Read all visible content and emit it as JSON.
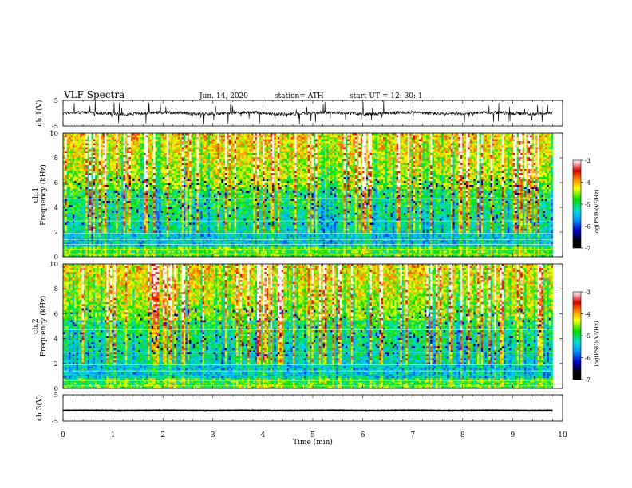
{
  "header": {
    "title": "VLF  Spectra",
    "date": "Jun. 14, 2020",
    "station": "station= ATH",
    "start_ut": "start  UT  =    12: 30: 1"
  },
  "chart_data": [
    {
      "type": "line",
      "id": "ch1-waveform",
      "ylabel": "ch.1(V)",
      "yticks": [
        "5",
        "-5"
      ],
      "ylim": [
        -5,
        5
      ],
      "xlim": [
        0,
        10
      ],
      "data_extent_min": 9.8,
      "baseline": 0,
      "noise_amplitude": 1.2,
      "color": "#000000"
    },
    {
      "type": "heatmap",
      "id": "ch1-spectrogram",
      "ylabel": "ch.1\nFrequency  (kHz)",
      "ylabel_lines": [
        "ch.1",
        "Frequency  (kHz)"
      ],
      "yticks": [
        "10",
        "8",
        "6",
        "4",
        "2",
        "0"
      ],
      "ylim": [
        0,
        10
      ],
      "xlim": [
        0,
        10
      ],
      "data_extent_min": 9.8,
      "colorbar": {
        "label": "log(PSD)(V²/Hz)",
        "ticks": [
          "-3",
          "-4",
          "-5",
          "-6",
          "-7"
        ],
        "range": [
          -7,
          -3
        ]
      }
    },
    {
      "type": "heatmap",
      "id": "ch2-spectrogram",
      "ylabel": "ch.2\nFrequency  (kHz)",
      "ylabel_lines": [
        "ch.2",
        "Frequency  (kHz)"
      ],
      "yticks": [
        "10",
        "8",
        "6",
        "4",
        "2",
        "0"
      ],
      "ylim": [
        0,
        10
      ],
      "xlim": [
        0,
        10
      ],
      "data_extent_min": 9.8,
      "colorbar": {
        "label": "log(PSD)(V²/Hz)",
        "ticks": [
          "-3",
          "-4",
          "-5",
          "-6",
          "-7"
        ],
        "range": [
          -7,
          -3
        ]
      }
    },
    {
      "type": "line",
      "id": "ch3-waveform",
      "ylabel": "ch.3(V)",
      "yticks": [
        "5",
        "-5"
      ],
      "ylim": [
        -5,
        5
      ],
      "xlim": [
        0,
        10
      ],
      "data_extent_min": 9.8,
      "baseline": -1,
      "noise_amplitude": 0.15,
      "color": "#000000"
    }
  ],
  "xaxis": {
    "label": "Time  (min)",
    "ticks": [
      "0",
      "1",
      "2",
      "3",
      "4",
      "5",
      "6",
      "7",
      "8",
      "9",
      "10"
    ]
  },
  "colors": {
    "scale": [
      "#000000",
      "#0000c8",
      "#0096ff",
      "#00dcdc",
      "#00e000",
      "#ffff00",
      "#ff8c00",
      "#dc0000",
      "#ffffff"
    ]
  }
}
